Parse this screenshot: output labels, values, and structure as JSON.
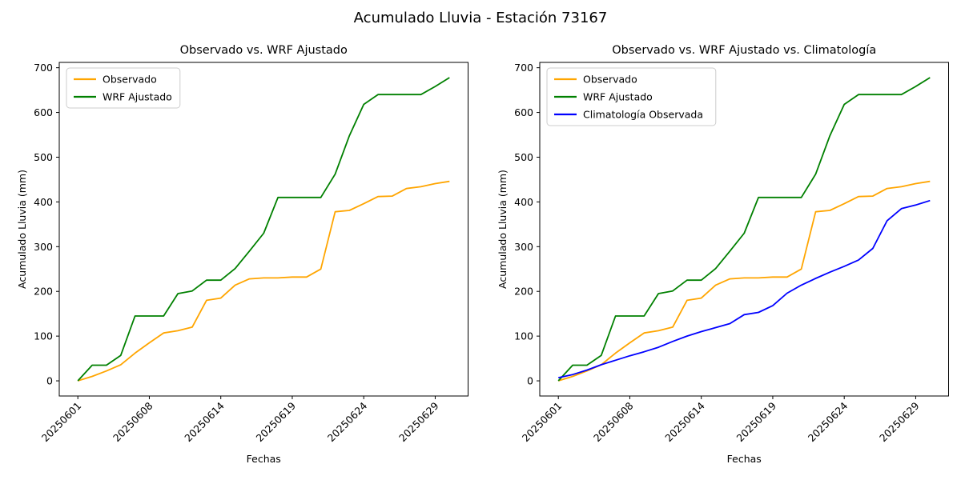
{
  "figure": {
    "suptitle": "Acumulado Lluvia - Estación 73167",
    "background": "#ffffff"
  },
  "axes": {
    "ylabel": "Acumulado Lluvia (mm)",
    "xlabel": "Fechas",
    "y_ticks": [
      0,
      100,
      200,
      300,
      400,
      500,
      600,
      700
    ],
    "x_tick_labels": [
      "20250601",
      "20250608",
      "20250614",
      "20250619",
      "20250624",
      "20250629"
    ],
    "x_tick_positions": [
      0,
      5,
      10,
      15,
      20,
      25
    ]
  },
  "colors": {
    "observado": "#FFA500",
    "wrf_ajustado": "#008000",
    "climatologia": "#0000FF",
    "legend_border": "#cccccc",
    "axis": "#000000"
  },
  "chart_data": [
    {
      "type": "line",
      "title": "Observado vs. WRF Ajustado",
      "xlabel": "Fechas",
      "ylabel": "Acumulado Lluvia (mm)",
      "grid": false,
      "legend_position": "upper left",
      "y_ticks": [
        0,
        100,
        200,
        300,
        400,
        500,
        600,
        700
      ],
      "ylim": [
        0,
        700
      ],
      "x_tick_positions": [
        0,
        5,
        10,
        15,
        20,
        25
      ],
      "x_tick_labels": [
        "20250601",
        "20250608",
        "20250614",
        "20250619",
        "20250624",
        "20250629"
      ],
      "series": [
        {
          "name": "Observado",
          "color": "#FFA500",
          "values": [
            0,
            10,
            22,
            36,
            62,
            85,
            107,
            112,
            120,
            180,
            185,
            214,
            228,
            230,
            230,
            232,
            232,
            250,
            378,
            381,
            396,
            412,
            413,
            430,
            434,
            441,
            446
          ]
        },
        {
          "name": "WRF Ajustado",
          "color": "#008000",
          "values": [
            0,
            35,
            35,
            57,
            145,
            145,
            145,
            195,
            201,
            225,
            225,
            251,
            290,
            330,
            410,
            410,
            410,
            410,
            462,
            548,
            618,
            640,
            640,
            640,
            640,
            658,
            678
          ]
        }
      ]
    },
    {
      "type": "line",
      "title": "Observado vs. WRF Ajustado vs. Climatología",
      "xlabel": "Fechas",
      "ylabel": "Acumulado Lluvia (mm)",
      "grid": false,
      "legend_position": "upper left",
      "y_ticks": [
        0,
        100,
        200,
        300,
        400,
        500,
        600,
        700
      ],
      "ylim": [
        0,
        700
      ],
      "x_tick_positions": [
        0,
        5,
        10,
        15,
        20,
        25
      ],
      "x_tick_labels": [
        "20250601",
        "20250608",
        "20250614",
        "20250619",
        "20250624",
        "20250629"
      ],
      "series": [
        {
          "name": "Observado",
          "color": "#FFA500",
          "values": [
            0,
            10,
            22,
            36,
            62,
            85,
            107,
            112,
            120,
            180,
            185,
            214,
            228,
            230,
            230,
            232,
            232,
            250,
            378,
            381,
            396,
            412,
            413,
            430,
            434,
            441,
            446
          ]
        },
        {
          "name": "WRF Ajustado",
          "color": "#008000",
          "values": [
            0,
            35,
            35,
            57,
            145,
            145,
            145,
            195,
            201,
            225,
            225,
            251,
            290,
            330,
            410,
            410,
            410,
            410,
            462,
            548,
            618,
            640,
            640,
            640,
            640,
            658,
            678
          ]
        },
        {
          "name": "Climatología Observada",
          "color": "#0000FF",
          "values": [
            7,
            14,
            24,
            36,
            46,
            56,
            65,
            75,
            88,
            100,
            110,
            119,
            128,
            148,
            153,
            168,
            196,
            214,
            229,
            243,
            256,
            270,
            296,
            358,
            385,
            393,
            403
          ]
        }
      ]
    }
  ]
}
